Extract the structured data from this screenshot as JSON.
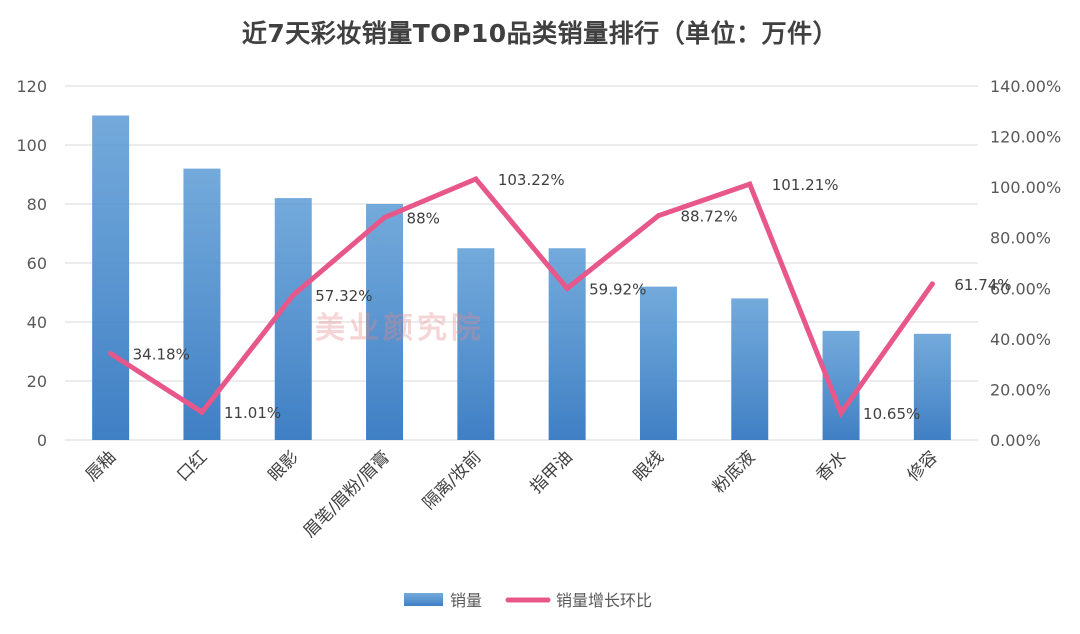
{
  "chart_data": {
    "type": "bar",
    "title": "近7天彩妆销量TOP10品类销量排行（单位：万件）",
    "categories": [
      "唇釉",
      "口红",
      "眼影",
      "眉笔/眉粉/眉膏",
      "隔离/妆前",
      "指甲油",
      "眼线",
      "粉底液",
      "香水",
      "修容"
    ],
    "series": [
      {
        "name": "销量",
        "type": "bar",
        "axis": "left",
        "color": "#5b9bd5",
        "values": [
          110,
          92,
          82,
          80,
          65,
          65,
          52,
          48,
          37,
          36
        ]
      },
      {
        "name": "销量增长环比",
        "type": "line",
        "axis": "right",
        "color": "#e8578a",
        "values": [
          34.18,
          11.01,
          57.32,
          88,
          103.22,
          59.92,
          88.72,
          101.21,
          10.65,
          61.74
        ],
        "labels": [
          "34.18%",
          "11.01%",
          "57.32%",
          "88%",
          "103.22%",
          "59.92%",
          "88.72%",
          "101.21%",
          "10.65%",
          "61.74%"
        ]
      }
    ],
    "y_left": {
      "min": 0,
      "max": 120,
      "step": 20,
      "ticks": [
        "0",
        "20",
        "40",
        "60",
        "80",
        "100",
        "120"
      ]
    },
    "y_right": {
      "min": 0,
      "max": 140,
      "step": 20,
      "ticks": [
        "0.00%",
        "20.00%",
        "40.00%",
        "60.00%",
        "80.00%",
        "100.00%",
        "120.00%",
        "140.00%"
      ]
    },
    "grid": true,
    "legend": {
      "position": "bottom",
      "items": [
        "销量",
        "销量增长环比"
      ]
    },
    "watermark": "美业颜究院"
  }
}
